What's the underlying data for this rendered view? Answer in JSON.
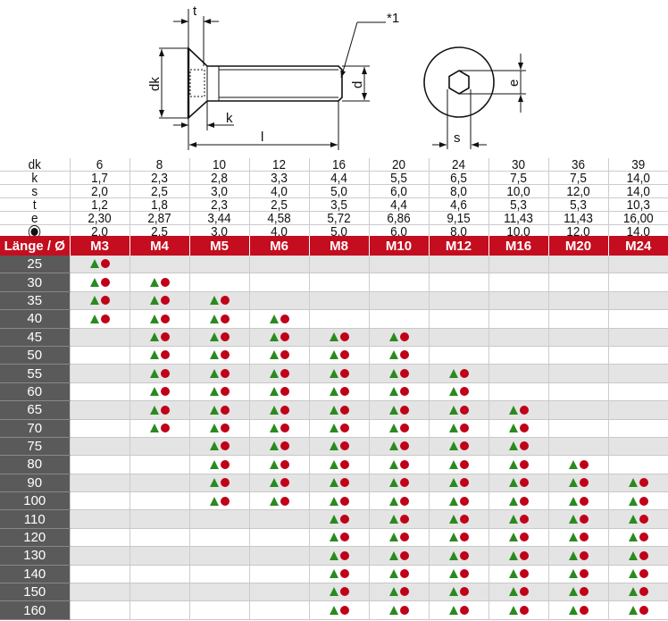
{
  "drawing": {
    "labels": {
      "t": "t",
      "note": "*1",
      "dk": "dk",
      "d": "d",
      "k": "k",
      "l": "l",
      "e": "e",
      "s": "s"
    }
  },
  "dimensions": {
    "rows": [
      {
        "label": "dk",
        "values": [
          "6",
          "8",
          "10",
          "12",
          "16",
          "20",
          "24",
          "30",
          "36",
          "39"
        ]
      },
      {
        "label": "k",
        "values": [
          "1,7",
          "2,3",
          "2,8",
          "3,3",
          "4,4",
          "5,5",
          "6,5",
          "7,5",
          "7,5",
          "14,0"
        ]
      },
      {
        "label": "s",
        "values": [
          "2,0",
          "2,5",
          "3,0",
          "4,0",
          "5,0",
          "6,0",
          "8,0",
          "10,0",
          "12,0",
          "14,0"
        ]
      },
      {
        "label": "t",
        "values": [
          "1,2",
          "1,8",
          "2,3",
          "2,5",
          "3,5",
          "4,4",
          "4,6",
          "5,3",
          "5,3",
          "10,3"
        ]
      },
      {
        "label": "e",
        "values": [
          "2,30",
          "2,87",
          "3,44",
          "4,58",
          "5,72",
          "6,86",
          "9,15",
          "11,43",
          "11,43",
          "16,00"
        ]
      },
      {
        "label": "",
        "icon": "drive-symbol-icon",
        "values": [
          "2,0",
          "2,5",
          "3,0",
          "4,0",
          "5,0",
          "6,0",
          "8,0",
          "10,0",
          "12,0",
          "14,0"
        ]
      }
    ]
  },
  "availability": {
    "header_label": "Länge / Ø",
    "sizes": [
      "M3",
      "M4",
      "M5",
      "M6",
      "M8",
      "M10",
      "M12",
      "M16",
      "M20",
      "M24"
    ],
    "lengths": [
      "25",
      "30",
      "35",
      "40",
      "45",
      "50",
      "55",
      "60",
      "65",
      "70",
      "75",
      "80",
      "90",
      "100",
      "110",
      "120",
      "130",
      "140",
      "150",
      "160"
    ],
    "ranges": {
      "M3": [
        "25",
        "40"
      ],
      "M4": [
        "30",
        "70"
      ],
      "M5": [
        "35",
        "100"
      ],
      "M6": [
        "40",
        "100"
      ],
      "M8": [
        "45",
        "160"
      ],
      "M10": [
        "45",
        "160"
      ],
      "M12": [
        "55",
        "160"
      ],
      "M16": [
        "65",
        "160"
      ],
      "M20": [
        "80",
        "160"
      ],
      "M24": [
        "90",
        "160"
      ]
    },
    "markers": {
      "triangle_color": "#2a8a20",
      "circle_color": "#c00018"
    },
    "colors": {
      "header": "#c40d1f",
      "length_column": "#5a5a5a",
      "stripe": "#e4e4e4"
    }
  }
}
